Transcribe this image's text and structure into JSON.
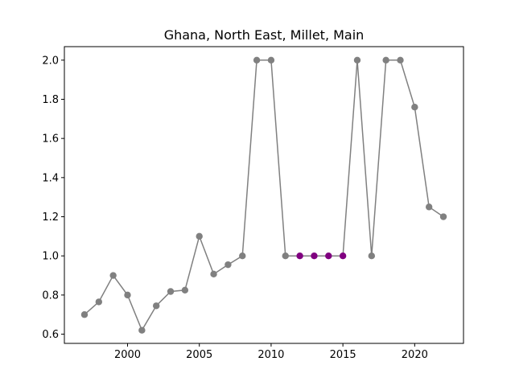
{
  "chart_data": {
    "type": "line",
    "title": "Ghana, North East, Millet, Main",
    "xlabel": "",
    "ylabel": "",
    "xlim": [
      1995.6,
      2023.4
    ],
    "ylim": [
      0.553,
      2.069
    ],
    "xticks": [
      2000,
      2005,
      2010,
      2015,
      2020
    ],
    "yticks": [
      0.6,
      0.8,
      1.0,
      1.2,
      1.4,
      1.6,
      1.8,
      2.0
    ],
    "xtick_labels": [
      "2000",
      "2005",
      "2010",
      "2015",
      "2020"
    ],
    "ytick_labels": [
      "0.6",
      "0.8",
      "1.0",
      "1.2",
      "1.4",
      "1.6",
      "1.8",
      "2.0"
    ],
    "grid": false,
    "line_color": "#808080",
    "highlight_color": "#800080",
    "series": [
      {
        "x": [
          1997,
          1998,
          1999,
          2000,
          2001,
          2002,
          2003,
          2004,
          2005,
          2006,
          2007,
          2008,
          2009,
          2010,
          2011,
          2012,
          2013,
          2014,
          2015,
          2016,
          2017,
          2018,
          2019,
          2020,
          2021,
          2022
        ],
        "y": [
          0.7,
          0.765,
          0.9,
          0.8,
          0.62,
          0.745,
          0.818,
          0.825,
          1.1,
          0.907,
          0.955,
          1.0,
          2.0,
          2.0,
          1.0,
          1.0,
          1.0,
          1.0,
          1.0,
          2.0,
          1.0,
          2.0,
          2.0,
          1.76,
          1.25,
          1.2
        ],
        "highlighted_x": [
          2012,
          2013,
          2014,
          2015
        ]
      }
    ]
  }
}
